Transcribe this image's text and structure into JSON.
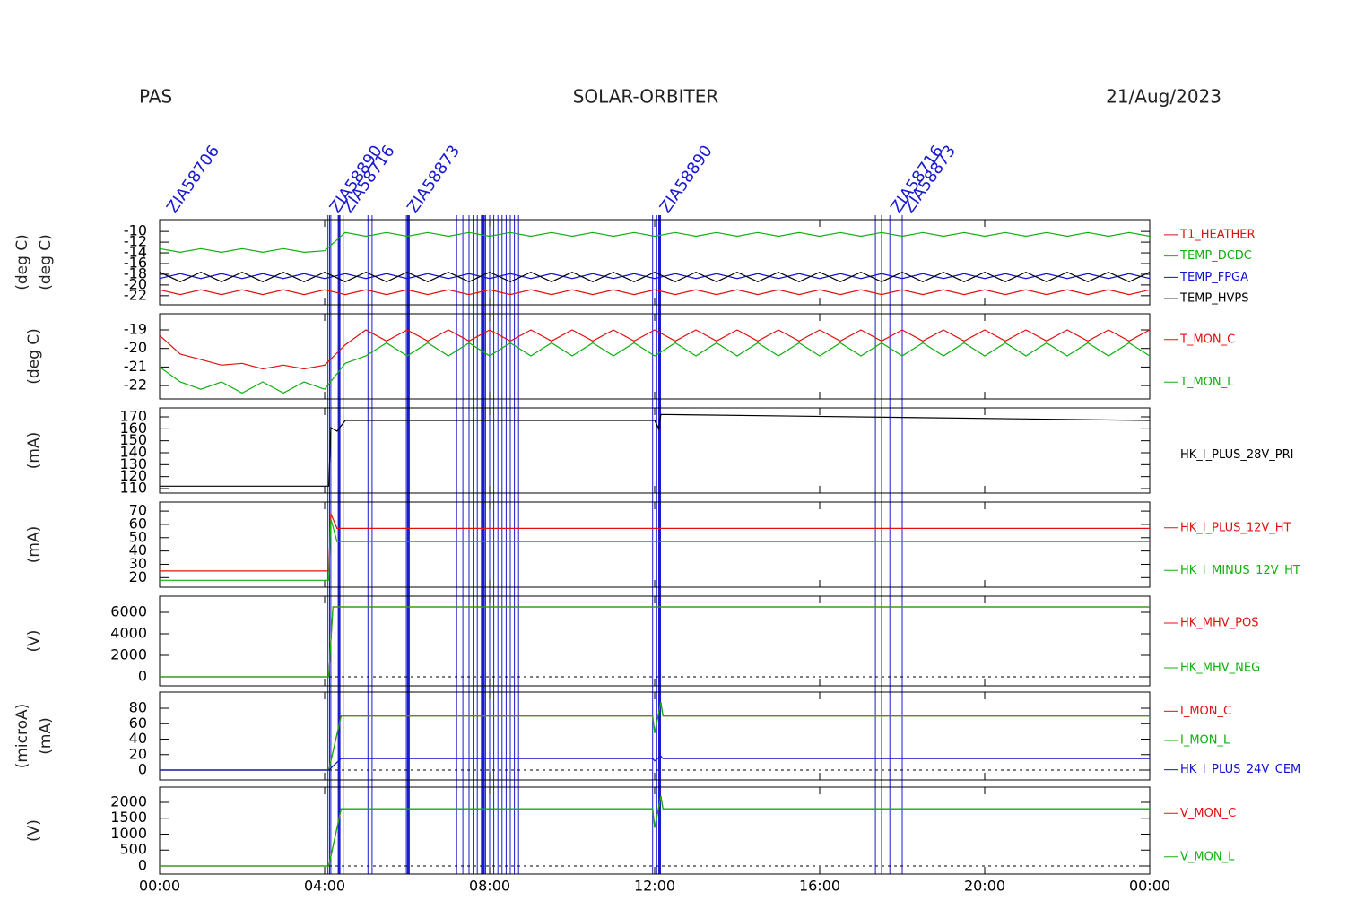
{
  "header": {
    "left": "PAS",
    "center": "SOLAR-ORBITER",
    "right": "21/Aug/2023"
  },
  "x_axis": {
    "xlim": [
      0,
      24
    ],
    "xticks": [
      {
        "value": 0,
        "label": "00:00"
      },
      {
        "value": 4,
        "label": "04:00"
      },
      {
        "value": 8,
        "label": "08:00"
      },
      {
        "value": 12,
        "label": "12:00"
      },
      {
        "value": 16,
        "label": "16:00"
      },
      {
        "value": 20,
        "label": "20:00"
      },
      {
        "value": 24,
        "label": "00:00"
      }
    ]
  },
  "events": [
    4.08,
    4.12,
    4.15,
    4.35,
    4.45,
    5.05,
    5.15,
    5.98,
    6.03,
    7.2,
    7.35,
    7.5,
    7.6,
    7.7,
    7.8,
    7.85,
    7.9,
    8.0,
    8.1,
    8.2,
    8.3,
    8.4,
    8.5,
    8.6,
    8.7,
    11.95,
    12.05,
    12.12,
    17.35,
    17.5,
    17.7,
    18.0
  ],
  "annotations": [
    {
      "x": 0.15,
      "label": "ZIA58706"
    },
    {
      "x": 4.1,
      "label": "ZIA58890"
    },
    {
      "x": 4.4,
      "label": "ZIA58716"
    },
    {
      "x": 5.98,
      "label": "ZIA58873"
    },
    {
      "x": 12.1,
      "label": "ZIA58890"
    },
    {
      "x": 17.7,
      "label": "ZIA58716"
    },
    {
      "x": 18.0,
      "label": "ZIA58873"
    }
  ],
  "chart_data": [
    {
      "type": "line",
      "ylabel": [
        "(deg C)",
        "(deg C)"
      ],
      "ylim": [
        -23.7,
        -7.8
      ],
      "yticks": [
        -10,
        -12,
        -14,
        -16,
        -18,
        -20,
        -22
      ],
      "x": [
        0,
        0.5,
        1,
        1.5,
        2,
        2.5,
        3,
        3.5,
        4,
        4.5,
        5,
        5.5,
        6,
        6.5,
        7,
        7.5,
        8,
        8.5,
        9,
        9.5,
        10,
        10.5,
        11,
        11.5,
        12,
        12.5,
        13,
        13.5,
        14,
        14.5,
        15,
        15.5,
        16,
        16.5,
        17,
        17.5,
        18,
        18.5,
        19,
        19.5,
        20,
        20.5,
        21,
        21.5,
        22,
        22.5,
        23,
        23.5,
        24
      ],
      "series": [
        {
          "name": "T1_HEATHER",
          "color": "#e01010",
          "values": [
            -20.9,
            -21.8,
            -20.9,
            -21.8,
            -20.9,
            -21.8,
            -20.9,
            -21.8,
            -20.9,
            -21.8,
            -20.9,
            -21.8,
            -20.9,
            -21.8,
            -20.9,
            -21.8,
            -20.9,
            -21.8,
            -20.9,
            -21.8,
            -20.9,
            -21.8,
            -20.9,
            -21.8,
            -20.9,
            -21.8,
            -20.9,
            -21.8,
            -20.9,
            -21.8,
            -20.9,
            -21.8,
            -20.9,
            -21.8,
            -20.9,
            -21.8,
            -20.9,
            -21.8,
            -20.9,
            -21.8,
            -20.9,
            -21.8,
            -20.9,
            -21.8,
            -20.9,
            -21.8,
            -20.9,
            -21.8,
            -20.9
          ]
        },
        {
          "name": "TEMP_DCDC",
          "color": "#10b010",
          "values": [
            -13.2,
            -13.9,
            -13.2,
            -13.9,
            -13.2,
            -13.9,
            -13.2,
            -13.9,
            -13.6,
            -10.2,
            -10.9,
            -10.2,
            -10.9,
            -10.2,
            -10.9,
            -10.2,
            -10.9,
            -10.2,
            -10.9,
            -10.2,
            -10.9,
            -10.2,
            -10.9,
            -10.2,
            -10.9,
            -10.2,
            -10.9,
            -10.2,
            -10.9,
            -10.2,
            -10.9,
            -10.2,
            -10.9,
            -10.2,
            -10.9,
            -10.2,
            -10.9,
            -10.2,
            -10.9,
            -10.2,
            -10.9,
            -10.2,
            -10.9,
            -10.2,
            -10.9,
            -10.2,
            -10.9,
            -10.2,
            -10.9
          ]
        },
        {
          "name": "TEMP_FPGA",
          "color": "#1010d0",
          "values": [
            -18.8,
            -17.9,
            -18.8,
            -17.9,
            -18.8,
            -17.9,
            -18.8,
            -17.9,
            -18.8,
            -17.9,
            -18.8,
            -17.9,
            -18.8,
            -17.9,
            -18.8,
            -17.9,
            -18.8,
            -17.9,
            -18.8,
            -17.9,
            -18.8,
            -17.9,
            -18.8,
            -17.9,
            -18.8,
            -17.9,
            -18.8,
            -17.9,
            -18.8,
            -17.9,
            -18.8,
            -17.9,
            -18.8,
            -17.9,
            -18.8,
            -17.9,
            -18.8,
            -17.9,
            -18.8,
            -17.9,
            -18.8,
            -17.9,
            -18.8,
            -17.9,
            -18.8,
            -17.9,
            -18.8,
            -17.9,
            -18.8
          ]
        },
        {
          "name": "TEMP_HVPS",
          "color": "#000000",
          "values": [
            -17.6,
            -19.4,
            -17.6,
            -19.4,
            -17.6,
            -19.4,
            -17.6,
            -19.4,
            -17.6,
            -19.4,
            -17.6,
            -19.4,
            -17.6,
            -19.4,
            -17.6,
            -19.4,
            -17.6,
            -19.4,
            -17.6,
            -19.4,
            -17.6,
            -19.4,
            -17.6,
            -19.4,
            -17.6,
            -19.4,
            -17.6,
            -19.4,
            -17.6,
            -19.4,
            -17.6,
            -19.4,
            -17.6,
            -19.4,
            -17.6,
            -19.4,
            -17.6,
            -19.4,
            -17.6,
            -19.4,
            -17.6,
            -19.4,
            -17.6,
            -19.4,
            -17.6,
            -19.4,
            -17.6,
            -19.4,
            -17.6
          ]
        }
      ]
    },
    {
      "type": "line",
      "ylabel": [
        "(deg C)"
      ],
      "ylim": [
        -22.72,
        -18.13
      ],
      "yticks": [
        -19,
        -20,
        -21,
        -22
      ],
      "x": [
        0,
        0.5,
        1,
        1.5,
        2,
        2.5,
        3,
        3.5,
        4,
        4.5,
        5,
        5.5,
        6,
        6.5,
        7,
        7.5,
        8,
        8.5,
        9,
        9.5,
        10,
        10.5,
        11,
        11.5,
        12,
        12.5,
        13,
        13.5,
        14,
        14.5,
        15,
        15.5,
        16,
        16.5,
        17,
        17.5,
        18,
        18.5,
        19,
        19.5,
        20,
        20.5,
        21,
        21.5,
        22,
        22.5,
        23,
        23.5,
        24
      ],
      "series": [
        {
          "name": "T_MON_C",
          "color": "#e01010",
          "values": [
            -19.3,
            -20.3,
            -20.6,
            -20.9,
            -20.8,
            -21.1,
            -20.9,
            -21.1,
            -20.9,
            -19.8,
            -19.0,
            -19.6,
            -19.0,
            -19.6,
            -19.0,
            -19.6,
            -19.0,
            -19.6,
            -19.0,
            -19.6,
            -19.0,
            -19.6,
            -19.0,
            -19.6,
            -19.0,
            -19.6,
            -19.0,
            -19.6,
            -19.0,
            -19.6,
            -19.0,
            -19.6,
            -19.0,
            -19.6,
            -19.0,
            -19.6,
            -19.0,
            -19.6,
            -19.0,
            -19.6,
            -19.0,
            -19.6,
            -19.0,
            -19.6,
            -19.0,
            -19.6,
            -19.0,
            -19.6,
            -19.0
          ]
        },
        {
          "name": "T_MON_L",
          "color": "#10b010",
          "values": [
            -21.0,
            -21.8,
            -22.2,
            -21.8,
            -22.4,
            -21.8,
            -22.4,
            -21.8,
            -22.2,
            -20.8,
            -20.4,
            -19.7,
            -20.4,
            -19.7,
            -20.4,
            -19.7,
            -20.4,
            -19.7,
            -20.4,
            -19.7,
            -20.4,
            -19.7,
            -20.4,
            -19.7,
            -20.4,
            -19.7,
            -20.4,
            -19.7,
            -20.4,
            -19.7,
            -20.4,
            -19.7,
            -20.4,
            -19.7,
            -20.4,
            -19.7,
            -20.4,
            -19.7,
            -20.4,
            -19.7,
            -20.4,
            -19.7,
            -20.4,
            -19.7,
            -20.4,
            -19.7,
            -20.4,
            -19.7,
            -20.4
          ]
        }
      ]
    },
    {
      "type": "line",
      "ylabel": [
        "(mA)"
      ],
      "ylim": [
        106.25,
        177.5
      ],
      "yticks": [
        110,
        120,
        130,
        140,
        150,
        160,
        170
      ],
      "x": [
        0,
        4.1,
        4.15,
        4.3,
        4.5,
        12.0,
        12.1,
        12.15,
        24
      ],
      "series": [
        {
          "name": "HK_I_PLUS_28V_PRI",
          "color": "#000000",
          "values": [
            112,
            112,
            161,
            158,
            167,
            167,
            160,
            172,
            167
          ]
        }
      ]
    },
    {
      "type": "line",
      "ylabel": [
        "(mA)"
      ],
      "ylim": [
        12.8,
        76.8
      ],
      "yticks": [
        20,
        30,
        40,
        50,
        60,
        70
      ],
      "x": [
        0,
        4.1,
        4.15,
        4.3,
        24
      ],
      "series": [
        {
          "name": "HK_I_PLUS_12V_HT",
          "color": "#e01010",
          "values": [
            25,
            25,
            68,
            57,
            57
          ]
        },
        {
          "name": "HK_I_MINUS_12V_HT",
          "color": "#10b010",
          "values": [
            18,
            18,
            64,
            47,
            47
          ]
        }
      ]
    },
    {
      "type": "line",
      "ylabel": [
        "(V)"
      ],
      "ylim": [
        -833,
        7500
      ],
      "yticks": [
        0,
        2000,
        4000,
        6000
      ],
      "zero_line": true,
      "x": [
        0,
        4.1,
        4.2,
        24
      ],
      "series": [
        {
          "name": "HK_MHV_POS",
          "color": "#e01010",
          "values": [
            0,
            0,
            6500,
            6500
          ]
        },
        {
          "name": "HK_MHV_NEG",
          "color": "#10b010",
          "values": [
            0,
            0,
            6500,
            6500
          ]
        }
      ]
    },
    {
      "type": "line",
      "ylabel": [
        "(microA)",
        "(mA)"
      ],
      "ylim": [
        -12.75,
        100.9
      ],
      "yticks": [
        0,
        20,
        40,
        60,
        80
      ],
      "zero_line": true,
      "x": [
        0,
        4.1,
        4.4,
        11.95,
        12.0,
        12.15,
        12.2,
        24
      ],
      "series": [
        {
          "name": "I_MON_C",
          "color": "#e01010",
          "values": [
            0,
            0,
            70,
            70,
            48,
            88,
            70,
            70
          ]
        },
        {
          "name": "I_MON_L",
          "color": "#10b010",
          "values": [
            0,
            0,
            70,
            70,
            48,
            88,
            70,
            70
          ]
        },
        {
          "name": "HK_I_PLUS_24V_CEM",
          "color": "#1010d0",
          "values": [
            0,
            0,
            15,
            15,
            12,
            18,
            15,
            15
          ]
        }
      ]
    },
    {
      "type": "line",
      "ylabel": [
        "(V)"
      ],
      "ylim": [
        -254,
        2479
      ],
      "yticks": [
        0,
        500,
        1000,
        1500,
        2000
      ],
      "zero_line": true,
      "x": [
        0,
        4.1,
        4.4,
        11.95,
        12.0,
        12.15,
        12.2,
        24
      ],
      "series": [
        {
          "name": "V_MON_C",
          "color": "#e01010",
          "values": [
            0,
            0,
            1800,
            1800,
            1200,
            2200,
            1800,
            1800
          ]
        },
        {
          "name": "V_MON_L",
          "color": "#10b010",
          "values": [
            0,
            0,
            1800,
            1800,
            1200,
            2200,
            1800,
            1800
          ]
        }
      ]
    }
  ]
}
